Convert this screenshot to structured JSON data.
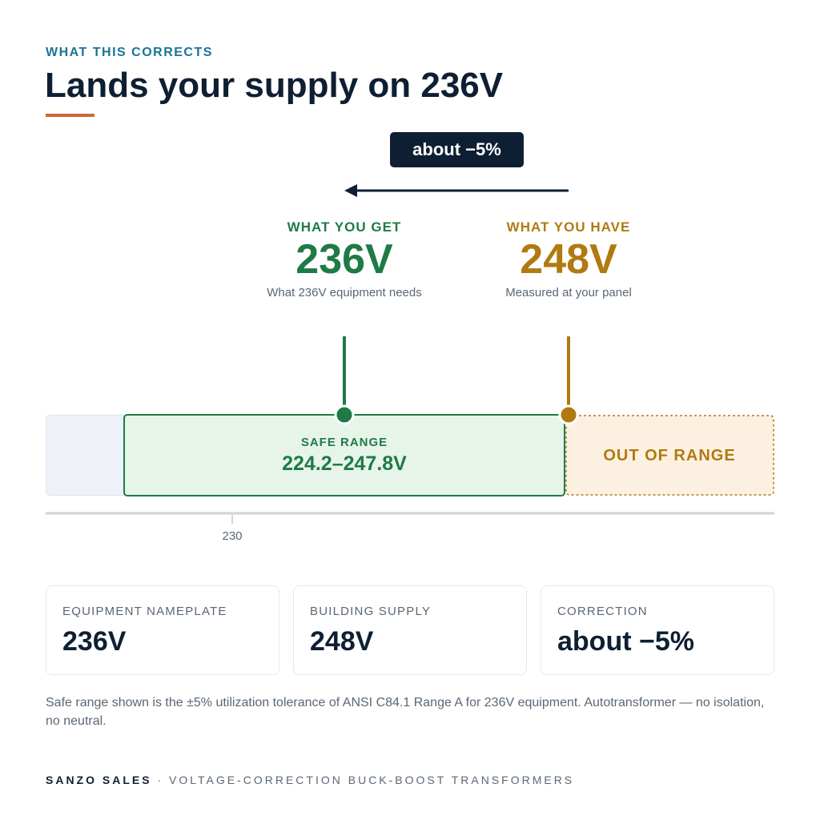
{
  "header": {
    "eyebrow": "WHAT THIS CORRECTS",
    "title": "Lands your supply on 236V"
  },
  "shift_badge": "about −5%",
  "target": {
    "label": "WHAT YOU GET",
    "value": "236V",
    "caption": "What 236V equipment needs"
  },
  "current": {
    "label": "WHAT YOU HAVE",
    "value": "248V",
    "caption": "Measured at your panel"
  },
  "bands": {
    "safe_label": "SAFE RANGE",
    "safe_range": "224.2–247.8V",
    "out_label": "OUT OF RANGE"
  },
  "axis": {
    "tick": "230"
  },
  "cards": [
    {
      "label": "EQUIPMENT NAMEPLATE",
      "value": "236V"
    },
    {
      "label": "BUILDING SUPPLY",
      "value": "248V"
    },
    {
      "label": "CORRECTION",
      "value": "about −5%"
    }
  ],
  "footnote": "Safe range shown is the ±5% utilization tolerance of ANSI C84.1 Range A for 236V equipment. Autotransformer — no isolation, no neutral.",
  "footer": {
    "brand": "SANZO SALES",
    "separator": "·",
    "tagline": "VOLTAGE-CORRECTION BUCK-BOOST TRANSFORMERS"
  }
}
